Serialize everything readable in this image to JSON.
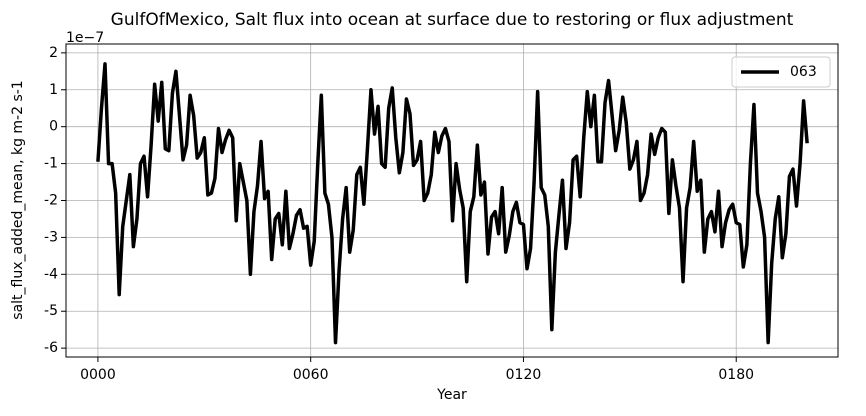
{
  "chart_data": {
    "type": "line",
    "title": "GulfOfMexico, Salt flux into ocean at surface due to restoring or flux adjustment",
    "x_label": "Year",
    "y_label": "salt_flux_added_mean, kg m-2 s-1",
    "y_offset_label": "1e−7",
    "x": [
      0,
      1,
      2,
      3,
      4,
      5,
      6,
      7,
      8,
      9,
      10,
      11,
      12,
      13,
      14,
      15,
      16,
      17,
      18,
      19,
      20,
      21,
      22,
      23,
      24,
      25,
      26,
      27,
      28,
      29,
      30,
      31,
      32,
      33,
      34,
      35,
      36,
      37,
      38,
      39,
      40,
      41,
      42,
      43,
      44,
      45,
      46,
      47,
      48,
      49,
      50,
      51,
      52,
      53,
      54,
      55,
      56,
      57,
      58,
      59,
      60,
      61,
      62,
      63,
      64,
      65,
      66,
      67,
      68,
      69,
      70,
      71,
      72,
      73,
      74,
      75,
      76,
      77,
      78,
      79,
      80,
      81,
      82,
      83,
      84,
      85,
      86,
      87,
      88,
      89,
      90,
      91,
      92,
      93,
      94,
      95,
      96,
      97,
      98,
      99,
      100,
      101,
      102,
      103,
      104,
      105,
      106,
      107,
      108,
      109,
      110,
      111,
      112,
      113,
      114,
      115,
      116,
      117,
      118,
      119,
      120,
      121,
      122,
      123,
      124,
      125,
      126,
      127,
      128,
      129,
      130,
      131,
      132,
      133,
      134,
      135,
      136,
      137,
      138,
      139,
      140,
      141,
      142,
      143,
      144,
      145,
      146,
      147,
      148,
      149,
      150,
      151,
      152,
      153,
      154,
      155,
      156,
      157,
      158,
      159,
      160,
      161,
      162,
      163,
      164,
      165,
      166,
      167,
      168,
      169,
      170,
      171,
      172,
      173,
      174,
      175,
      176,
      177,
      178,
      179,
      180,
      181,
      182,
      183,
      184,
      185,
      186,
      187,
      188,
      189,
      190,
      191,
      192,
      193,
      194,
      195,
      196,
      197,
      198,
      199,
      200
    ],
    "series": [
      {
        "name": "063",
        "color": "#000000",
        "values": [
          -0.95,
          0.5,
          1.7,
          -1.0,
          -1.0,
          -1.8,
          -4.55,
          -2.7,
          -2.0,
          -1.3,
          -3.25,
          -2.5,
          -1.0,
          -0.8,
          -1.9,
          -0.5,
          1.15,
          0.15,
          1.2,
          -0.6,
          -0.65,
          0.9,
          1.5,
          0.3,
          -0.9,
          -0.5,
          0.85,
          0.3,
          -0.85,
          -0.7,
          -0.3,
          -1.85,
          -1.8,
          -1.4,
          -0.05,
          -0.7,
          -0.35,
          -0.1,
          -0.3,
          -2.55,
          -1.0,
          -1.5,
          -2.0,
          -4.0,
          -2.3,
          -1.6,
          -0.4,
          -1.95,
          -1.75,
          -3.6,
          -2.5,
          -2.35,
          -3.2,
          -1.75,
          -3.3,
          -2.9,
          -2.4,
          -2.25,
          -2.75,
          -2.7,
          -3.75,
          -3.1,
          -1.0,
          0.85,
          -1.8,
          -2.1,
          -3.0,
          -5.85,
          -3.9,
          -2.5,
          -1.65,
          -3.4,
          -2.8,
          -1.3,
          -1.1,
          -2.1,
          -0.6,
          1.0,
          -0.2,
          0.55,
          -1.0,
          -1.1,
          0.5,
          1.05,
          -0.3,
          -1.25,
          -0.7,
          0.75,
          0.35,
          -1.05,
          -0.9,
          -0.4,
          -2.0,
          -1.8,
          -1.3,
          -0.15,
          -0.7,
          -0.25,
          -0.05,
          -0.4,
          -2.55,
          -1.0,
          -1.7,
          -2.2,
          -4.2,
          -2.3,
          -1.9,
          -0.5,
          -1.85,
          -1.5,
          -3.45,
          -2.45,
          -2.3,
          -2.9,
          -1.65,
          -3.4,
          -2.95,
          -2.3,
          -2.05,
          -2.6,
          -2.65,
          -3.85,
          -3.3,
          -1.5,
          0.95,
          -1.65,
          -1.85,
          -2.7,
          -5.5,
          -3.4,
          -2.4,
          -1.45,
          -3.3,
          -2.6,
          -0.9,
          -0.8,
          -1.9,
          -0.3,
          0.95,
          0.0,
          0.85,
          -0.95,
          -0.95,
          0.65,
          1.25,
          0.3,
          -0.65,
          -0.1,
          0.8,
          0.1,
          -1.15,
          -0.9,
          -0.4,
          -2.0,
          -1.8,
          -1.3,
          -0.2,
          -0.75,
          -0.3,
          -0.05,
          -0.15,
          -2.35,
          -0.9,
          -1.6,
          -2.2,
          -4.2,
          -2.2,
          -1.65,
          -0.4,
          -1.75,
          -1.45,
          -3.4,
          -2.5,
          -2.3,
          -2.85,
          -1.75,
          -3.25,
          -2.6,
          -2.25,
          -2.1,
          -2.6,
          -2.65,
          -3.8,
          -3.2,
          -1.0,
          0.6,
          -1.8,
          -2.3,
          -3.0,
          -5.85,
          -3.7,
          -2.5,
          -1.9,
          -3.55,
          -2.9,
          -1.35,
          -1.15,
          -2.15,
          -1.0,
          0.7,
          -0.45
        ]
      }
    ],
    "xlim": [
      -9,
      208.7
    ],
    "ylim": [
      -6.24,
      2.24
    ],
    "xticks": [
      {
        "value": 0,
        "label": "0000"
      },
      {
        "value": 60,
        "label": "0060"
      },
      {
        "value": 120,
        "label": "0120"
      },
      {
        "value": 180,
        "label": "0180"
      }
    ],
    "yticks": [
      2,
      1,
      0,
      -1,
      -2,
      -3,
      -4,
      -5,
      -6
    ],
    "grid": true,
    "legend": "upper right"
  }
}
